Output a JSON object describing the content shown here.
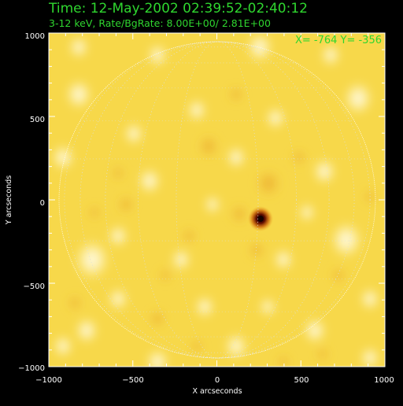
{
  "header": {
    "time_line": "Time: 12-May-2002 02:39:52-02:40:12",
    "rate_line": "3-12 keV, Rate/BgRate:  8.00E+00/  2.81E+00",
    "coord_readout": "X= -764 Y= -356"
  },
  "axes": {
    "xlabel": "X arcseconds",
    "ylabel": "Y arcseconds",
    "xticks": [
      "−1000",
      "−500",
      "0",
      "500",
      "1000"
    ],
    "yticks": [
      "1000",
      "500",
      "0",
      "−500",
      "−1000"
    ]
  },
  "colors": {
    "background": "#000000",
    "text_green": "#2fd62f",
    "limb": "#ffffff",
    "image_base": "#f7d84a",
    "source_core": "#2a0000"
  }
}
